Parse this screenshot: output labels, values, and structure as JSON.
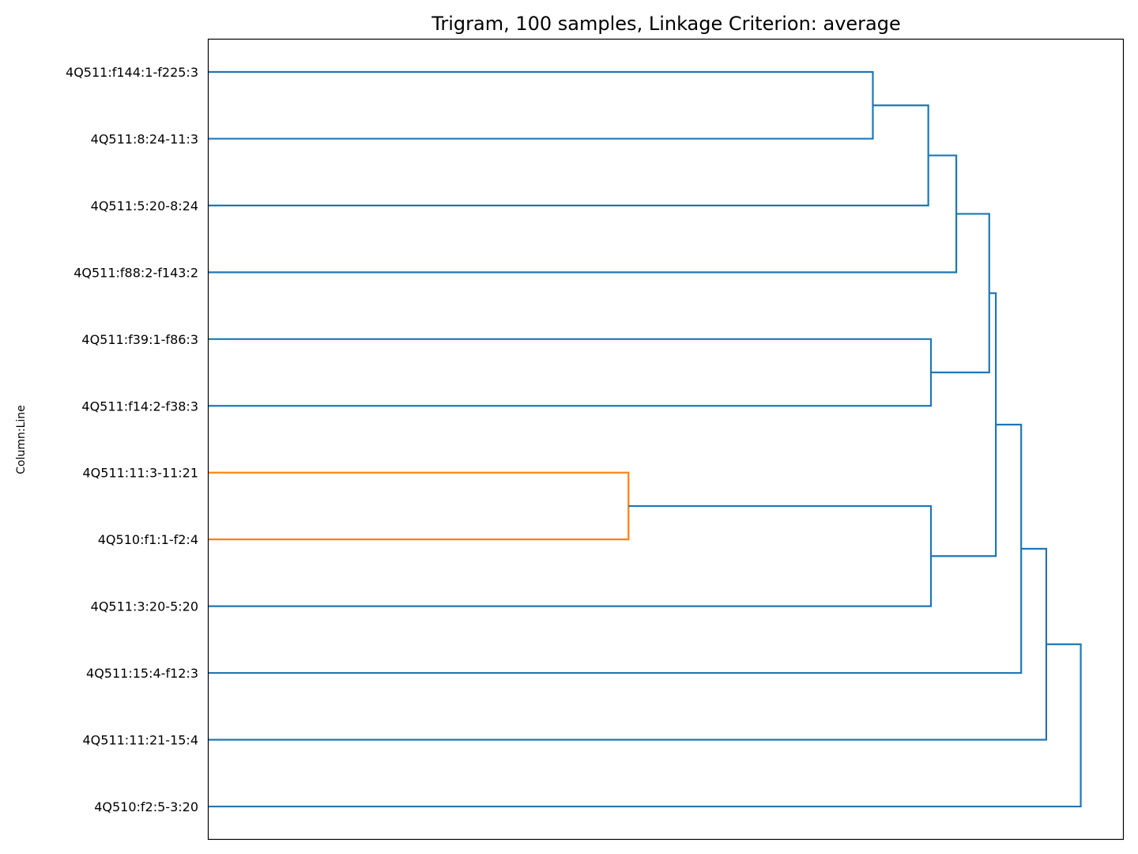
{
  "chart_data": {
    "type": "dendrogram",
    "title": "Trigram, 100 samples, Linkage Criterion: average",
    "ylabel": "Column:Line",
    "orientation": "left",
    "leaves": [
      "4Q511:f144:1-f225:3",
      "4Q511:8:24-11:3",
      "4Q511:5:20-8:24",
      "4Q511:f88:2-f143:2",
      "4Q511:f39:1-f86:3",
      "4Q511:f14:2-f38:3",
      "4Q511:11:3-11:21",
      "4Q510:f1:1-f2:4",
      "4Q511:3:20-5:20",
      "4Q511:15:4-f12:3",
      "4Q511:11:21-15:4",
      "4Q510:f2:5-3:20"
    ],
    "merge_height_max": 1.0,
    "merges": [
      {
        "a": "L6",
        "b": "L7",
        "height": 0.4588,
        "color": "#ff7f0e"
      },
      {
        "a": "L0",
        "b": "L1",
        "height": 0.7258,
        "color": "#1f77b4"
      },
      {
        "a": "M1",
        "b": "L2",
        "height": 0.7864,
        "color": "#1f77b4"
      },
      {
        "a": "L4",
        "b": "L5",
        "height": 0.7893,
        "color": "#1f77b4"
      },
      {
        "a": "M0",
        "b": "L8",
        "height": 0.7893,
        "color": "#1f77b4"
      },
      {
        "a": "M2",
        "b": "L3",
        "height": 0.817,
        "color": "#1f77b4"
      },
      {
        "a": "M5",
        "b": "M3",
        "height": 0.853,
        "color": "#1f77b4"
      },
      {
        "a": "M6",
        "b": "M4",
        "height": 0.8602,
        "color": "#1f77b4"
      },
      {
        "a": "M7",
        "b": "L9",
        "height": 0.8879,
        "color": "#1f77b4"
      },
      {
        "a": "M8",
        "b": "L10",
        "height": 0.9153,
        "color": "#1f77b4"
      },
      {
        "a": "M9",
        "b": "L11",
        "height": 0.953,
        "color": "#1f77b4"
      }
    ]
  }
}
